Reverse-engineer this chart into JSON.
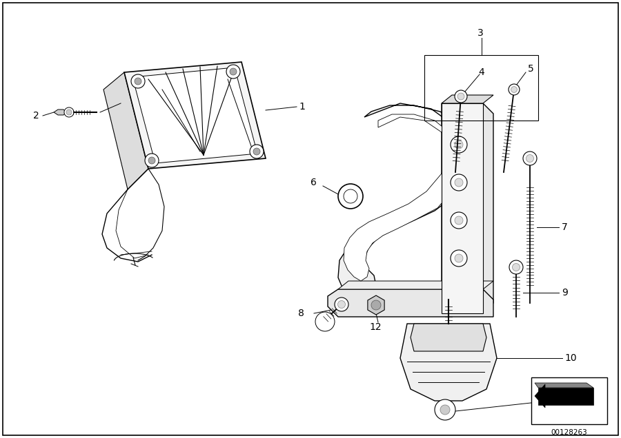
{
  "fig_width": 9.0,
  "fig_height": 6.36,
  "dpi": 100,
  "diagram_id": "00128263",
  "border_color": "#000000",
  "bg_color": "#ffffff"
}
